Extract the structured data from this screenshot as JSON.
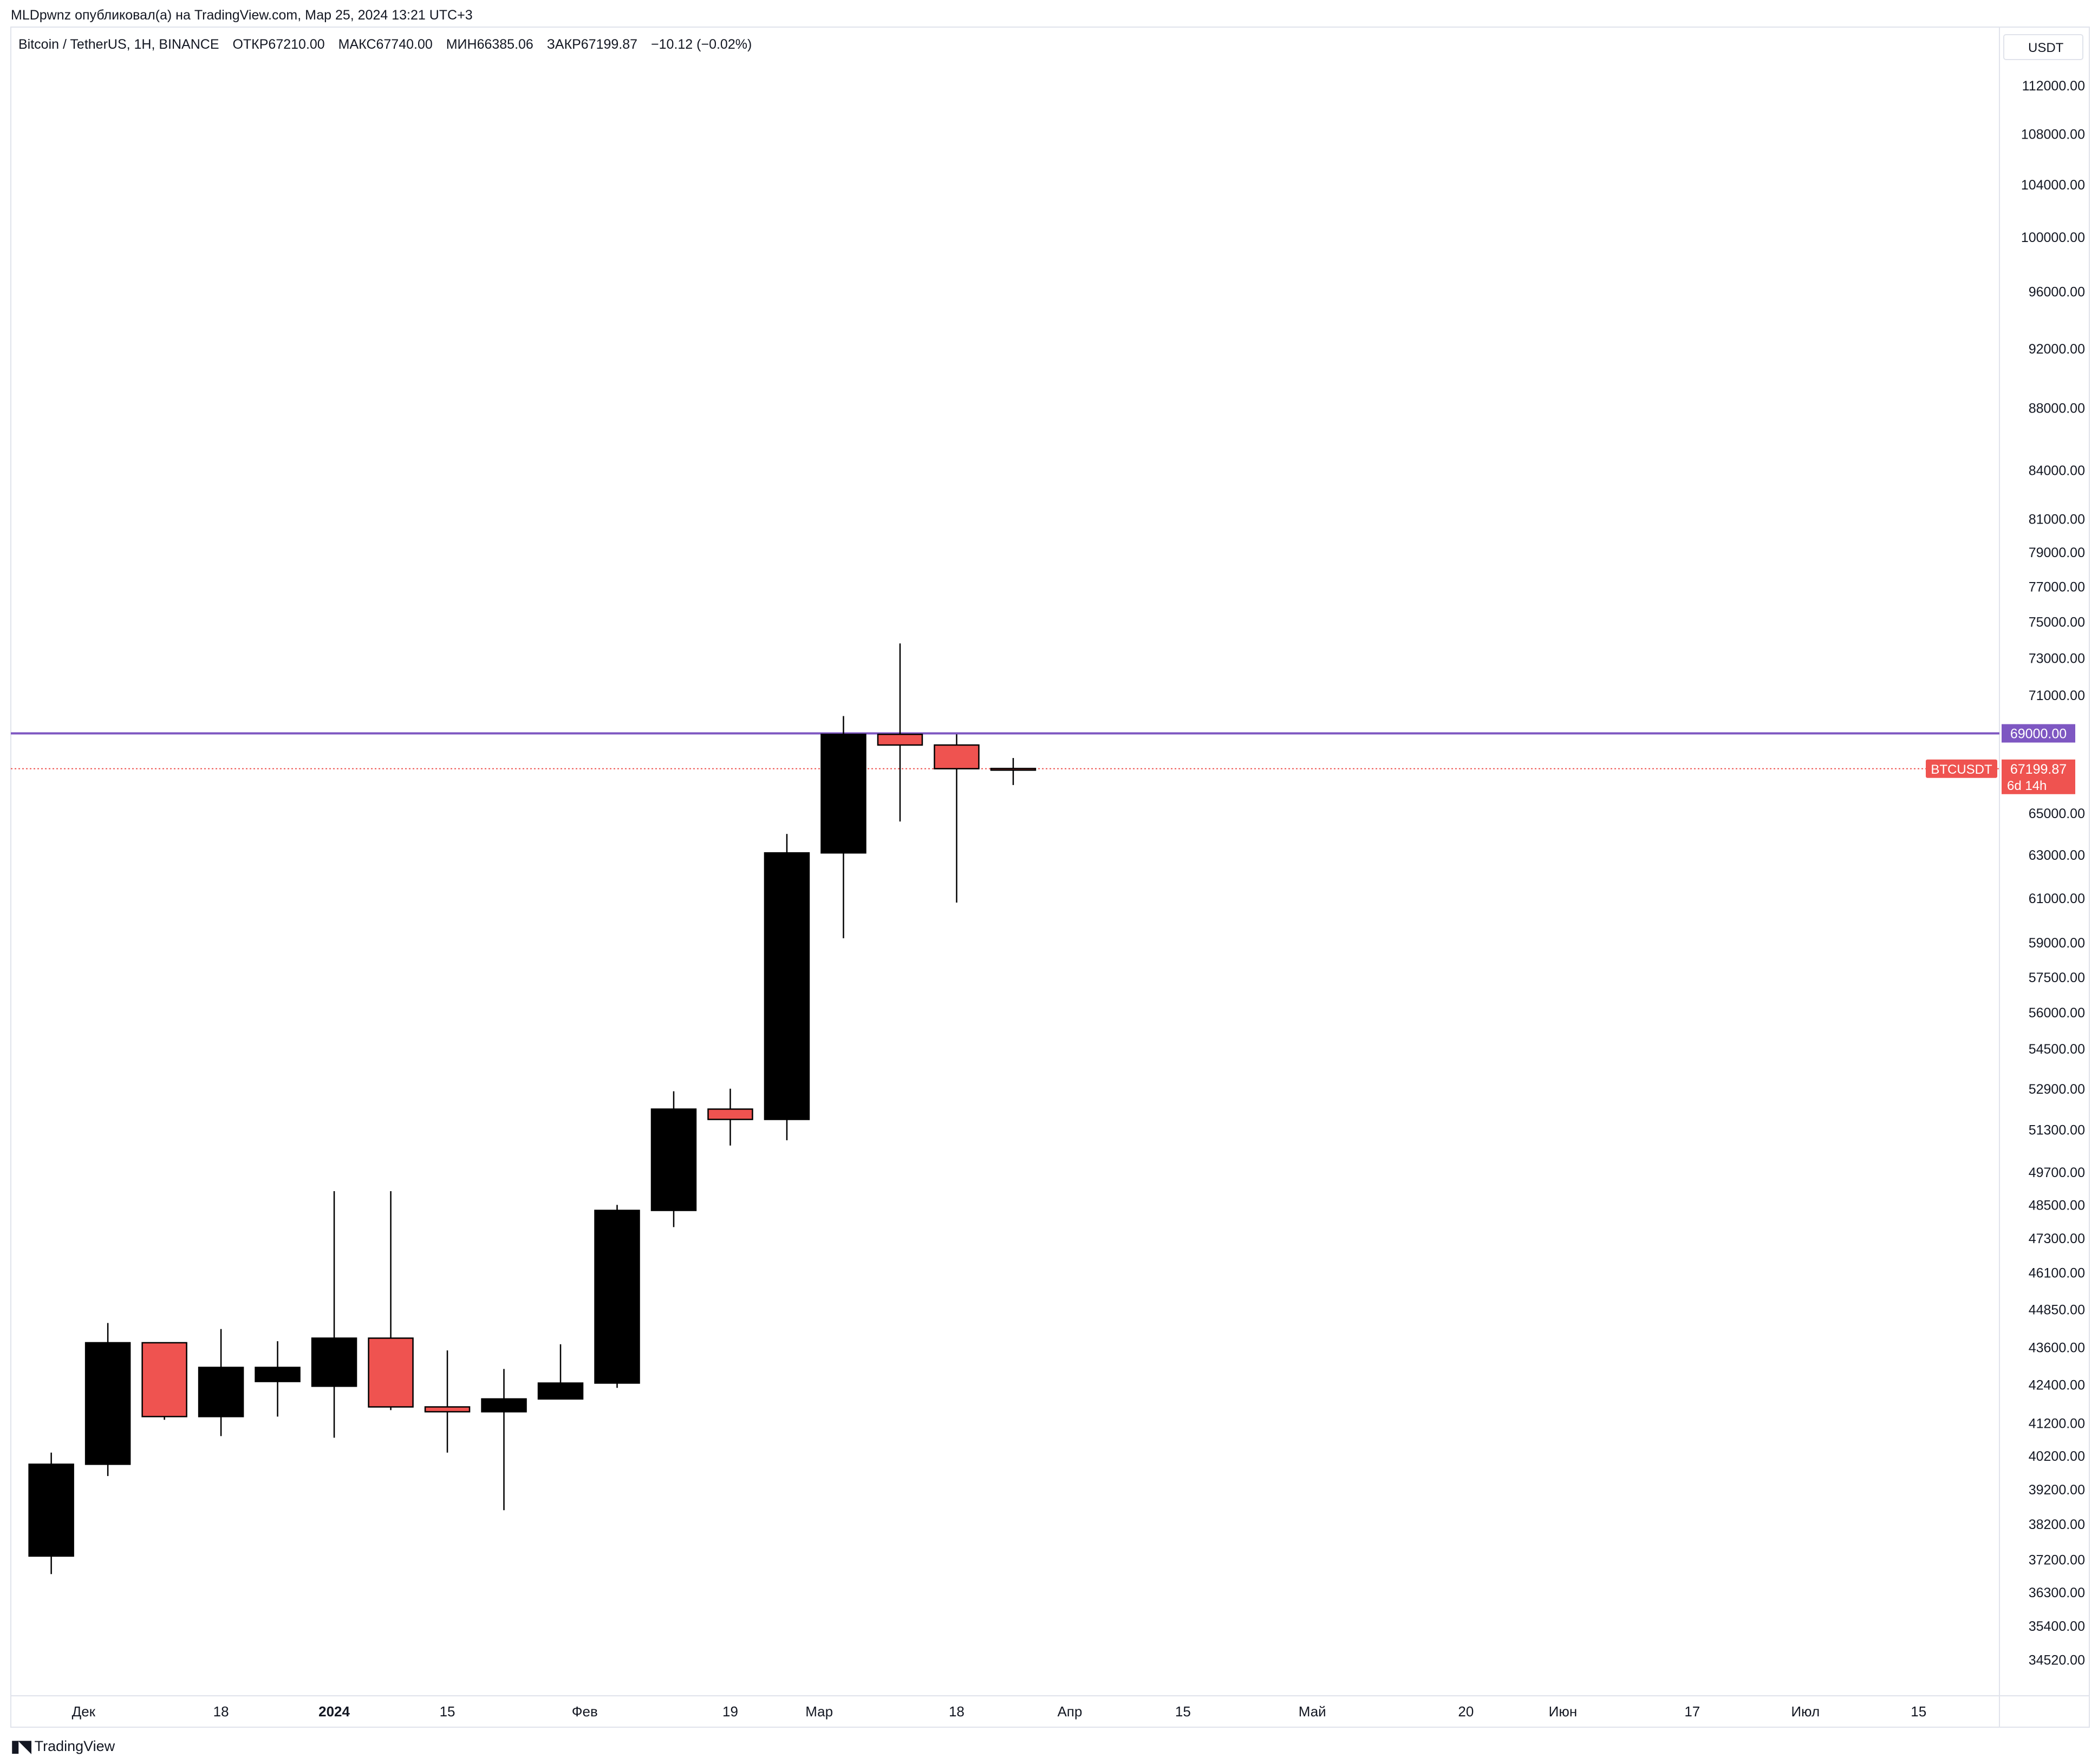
{
  "header": {
    "publisher_line": "MLDpwnz опубликовал(а) на TradingView.com, Мар 25, 2024 13:21 UTC+3",
    "symbol": "Bitcoin / TetherUS, 1H, BINANCE",
    "open": "ОТКР67210.00",
    "high": "МАКС67740.00",
    "low": "МИН66385.06",
    "close": "ЗАКР67199.87",
    "change": "−10.12 (−0.02%)"
  },
  "currency_label": "USDT",
  "footer": {
    "brand": "TradingView",
    "logo": "tradingview-logo-icon"
  },
  "colors": {
    "up_body": "#000000",
    "down_body": "#ef5350",
    "level_line": "#7e57c2",
    "current_price": "#ef5350",
    "grid": "#e0e3eb",
    "text": "#131722"
  },
  "chart_data": {
    "type": "candlestick",
    "title": "",
    "y_scale": "log",
    "ylim": [
      33600,
      117000
    ],
    "y_ticks": [
      "112000.00",
      "108000.00",
      "104000.00",
      "100000.00",
      "96000.00",
      "92000.00",
      "88000.00",
      "84000.00",
      "81000.00",
      "79000.00",
      "77000.00",
      "75000.00",
      "73000.00",
      "71000.00",
      "65000.00",
      "63000.00",
      "61000.00",
      "59000.00",
      "57500.00",
      "56000.00",
      "54500.00",
      "52900.00",
      "51300.00",
      "49700.00",
      "48500.00",
      "47300.00",
      "46100.00",
      "44850.00",
      "43600.00",
      "42400.00",
      "41200.00",
      "40200.00",
      "39200.00",
      "38200.00",
      "37200.00",
      "36300.00",
      "35400.00",
      "34520.00"
    ],
    "x_ticks": [
      {
        "label": "Дек",
        "date": "2023-12-01",
        "bold": false
      },
      {
        "label": "18",
        "date": "2023-12-18",
        "bold": false
      },
      {
        "label": "2024",
        "date": "2024-01-01",
        "bold": true
      },
      {
        "label": "15",
        "date": "2024-01-15",
        "bold": false
      },
      {
        "label": "Фев",
        "date": "2024-02-01",
        "bold": false
      },
      {
        "label": "19",
        "date": "2024-02-19",
        "bold": false
      },
      {
        "label": "Мар",
        "date": "2024-03-01",
        "bold": false
      },
      {
        "label": "18",
        "date": "2024-03-18",
        "bold": false
      },
      {
        "label": "Апр",
        "date": "2024-04-01",
        "bold": false
      },
      {
        "label": "15",
        "date": "2024-04-15",
        "bold": false
      },
      {
        "label": "Май",
        "date": "2024-05-01",
        "bold": false
      },
      {
        "label": "20",
        "date": "2024-05-20",
        "bold": false
      },
      {
        "label": "Июн",
        "date": "2024-06-01",
        "bold": false
      },
      {
        "label": "17",
        "date": "2024-06-17",
        "bold": false
      },
      {
        "label": "Июл",
        "date": "2024-07-01",
        "bold": false
      },
      {
        "label": "15",
        "date": "2024-07-15",
        "bold": false
      }
    ],
    "xlim": [
      "2023-11-22",
      "2024-07-25"
    ],
    "candles": [
      {
        "date": "2023-11-27",
        "open": 37300,
        "high": 40300,
        "low": 36800,
        "close": 39950
      },
      {
        "date": "2023-12-04",
        "open": 39950,
        "high": 44400,
        "low": 39600,
        "close": 43750
      },
      {
        "date": "2023-12-11",
        "open": 43750,
        "high": 43750,
        "low": 41300,
        "close": 41400
      },
      {
        "date": "2023-12-18",
        "open": 41400,
        "high": 44200,
        "low": 40800,
        "close": 42950
      },
      {
        "date": "2023-12-25",
        "open": 42500,
        "high": 43800,
        "low": 41400,
        "close": 42950
      },
      {
        "date": "2024-01-01",
        "open": 42350,
        "high": 49000,
        "low": 40750,
        "close": 43900
      },
      {
        "date": "2024-01-08",
        "open": 43900,
        "high": 49000,
        "low": 41600,
        "close": 41700
      },
      {
        "date": "2024-01-15",
        "open": 41700,
        "high": 43500,
        "low": 40300,
        "close": 41550
      },
      {
        "date": "2024-01-22",
        "open": 41550,
        "high": 42900,
        "low": 38600,
        "close": 41950
      },
      {
        "date": "2024-01-29",
        "open": 41950,
        "high": 43700,
        "low": 41950,
        "close": 42450
      },
      {
        "date": "2024-02-05",
        "open": 42450,
        "high": 48500,
        "low": 42300,
        "close": 48300
      },
      {
        "date": "2024-02-12",
        "open": 48300,
        "high": 52800,
        "low": 47700,
        "close": 52100
      },
      {
        "date": "2024-02-19",
        "open": 52100,
        "high": 52900,
        "low": 50700,
        "close": 51700
      },
      {
        "date": "2024-02-26",
        "open": 51700,
        "high": 64000,
        "low": 50900,
        "close": 63100
      },
      {
        "date": "2024-03-04",
        "open": 63100,
        "high": 69900,
        "low": 59200,
        "close": 68950
      },
      {
        "date": "2024-03-11",
        "open": 68950,
        "high": 73800,
        "low": 64600,
        "close": 68400
      },
      {
        "date": "2024-03-18",
        "open": 68400,
        "high": 68950,
        "low": 60800,
        "close": 67200
      },
      {
        "date": "2024-03-25",
        "open": 67210,
        "high": 67740,
        "low": 66385.06,
        "close": 67199.87
      }
    ],
    "level_line": {
      "value": 69000,
      "label": "69000.00"
    },
    "current_price": {
      "symbol": "BTCUSDT",
      "value": 67199.87,
      "label": "67199.87",
      "countdown": "6d 14h"
    },
    "grid": false,
    "legend": "top-left"
  }
}
